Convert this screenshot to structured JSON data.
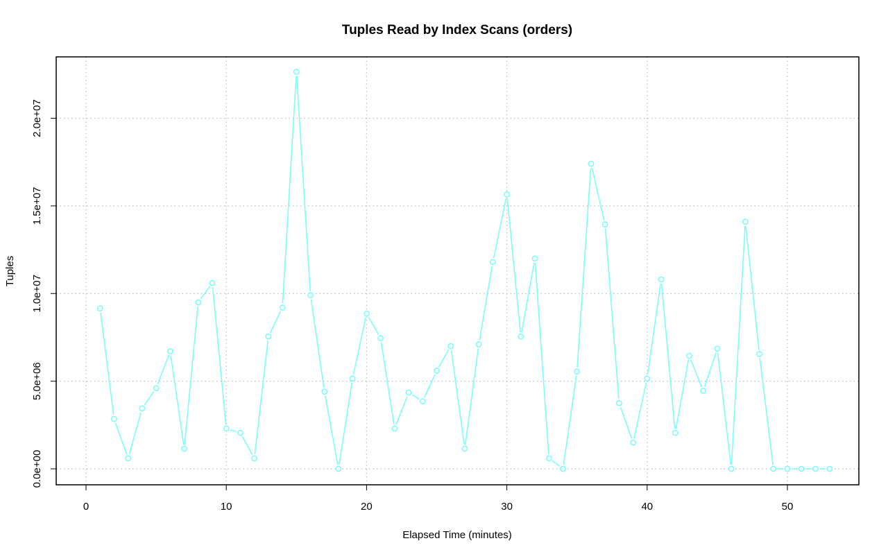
{
  "chart_data": {
    "type": "line",
    "title": "Tuples Read by Index Scans (orders)",
    "xlabel": "Elapsed Time (minutes)",
    "ylabel": "Tuples",
    "xlim": [
      0,
      55
    ],
    "ylim": [
      0,
      22600000
    ],
    "x_ticks": [
      0,
      10,
      20,
      30,
      40,
      50
    ],
    "x_tick_labels": [
      "0",
      "10",
      "20",
      "30",
      "40",
      "50"
    ],
    "y_ticks": [
      0,
      5000000,
      10000000,
      15000000,
      20000000
    ],
    "y_tick_labels": [
      "0.0e+00",
      "5.0e+06",
      "1.0e+07",
      "1.5e+07",
      "2.0e+07"
    ],
    "grid": true,
    "line_color": "#7ffcfc",
    "series": [
      {
        "x": [
          1,
          2,
          3,
          4,
          5,
          6,
          7,
          8,
          9,
          10,
          11,
          12,
          13,
          14,
          15,
          16,
          17,
          18,
          19,
          20,
          21,
          22,
          23,
          24,
          25,
          26,
          27,
          28,
          29,
          30,
          31,
          32,
          33,
          34,
          35,
          36,
          37,
          38,
          39,
          40,
          41,
          42,
          43,
          44,
          45,
          46,
          47,
          48,
          49,
          50,
          51,
          52,
          53
        ],
        "values": [
          9150000,
          2850000,
          600000,
          3450000,
          4600000,
          6700000,
          1150000,
          9500000,
          10600000,
          2300000,
          2050000,
          600000,
          7550000,
          9200000,
          22650000,
          9900000,
          4400000,
          0,
          5150000,
          8850000,
          7450000,
          2300000,
          4350000,
          3850000,
          5600000,
          7000000,
          1150000,
          7100000,
          11800000,
          15650000,
          7550000,
          12000000,
          600000,
          0,
          5550000,
          17400000,
          13950000,
          3750000,
          1500000,
          5150000,
          10800000,
          2050000,
          6450000,
          4450000,
          6850000,
          0,
          14100000,
          6550000,
          0,
          0,
          0,
          0,
          0
        ]
      }
    ]
  }
}
